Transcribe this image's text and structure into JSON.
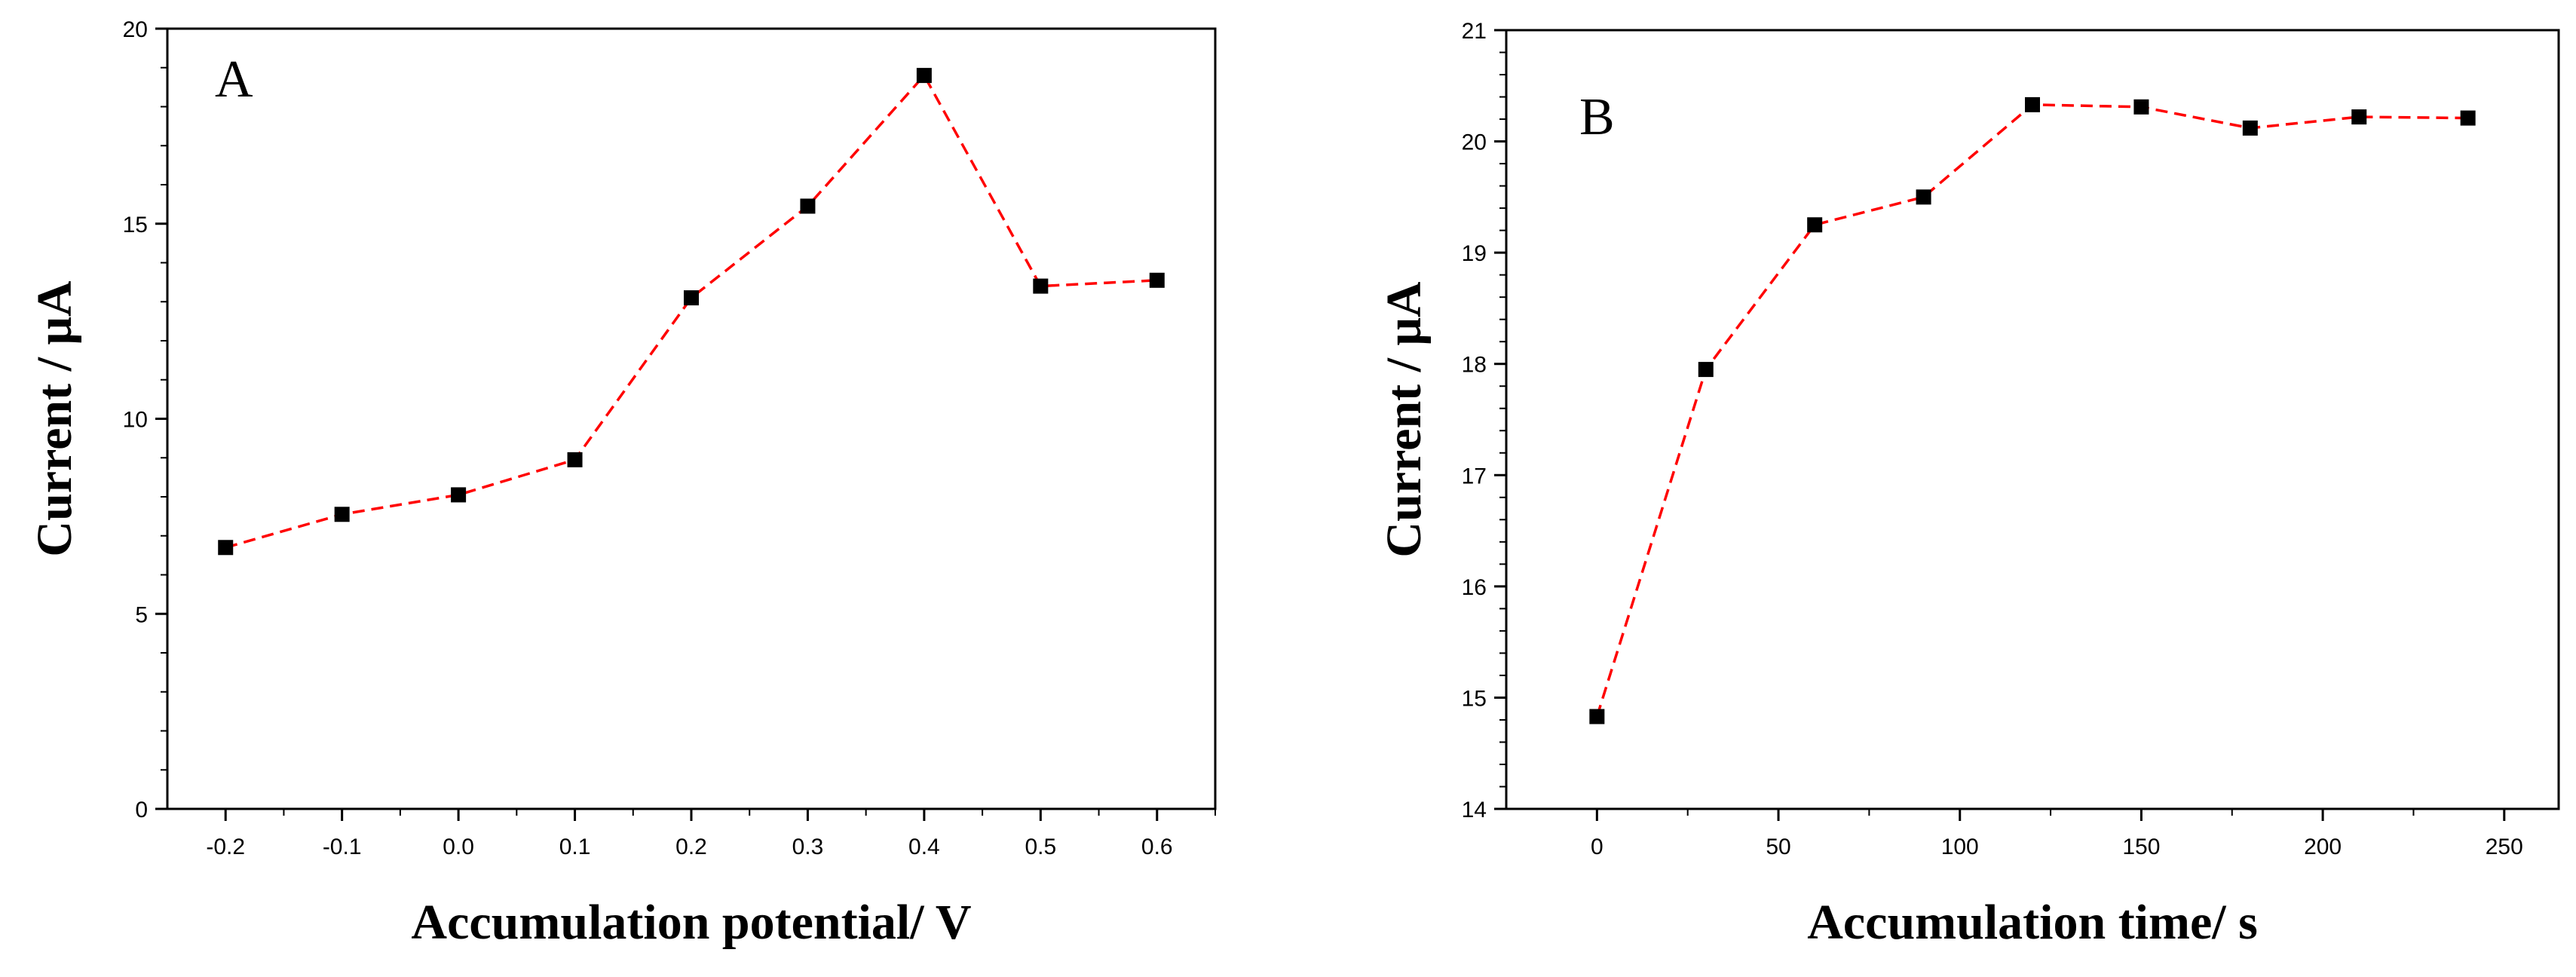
{
  "chart_data": [
    {
      "type": "line",
      "panel_label": "A",
      "xlabel": "Accumulation potential/ V",
      "ylabel": "Current / μA",
      "xlim": [
        -0.25,
        0.65
      ],
      "ylim": [
        0,
        20
      ],
      "xticks": [
        "-0.2",
        "-0.1",
        "0.0",
        "0.1",
        "0.2",
        "0.3",
        "0.4",
        "0.5",
        "0.6"
      ],
      "yticks": [
        "0",
        "5",
        "10",
        "15",
        "20"
      ],
      "series": [
        {
          "name": "Current",
          "x": [
            -0.2,
            -0.1,
            0.0,
            0.1,
            0.2,
            0.3,
            0.4,
            0.5,
            0.6
          ],
          "y": [
            6.7,
            7.55,
            8.05,
            8.95,
            13.1,
            15.45,
            18.8,
            13.4,
            13.55
          ],
          "line_color": "#ff0000",
          "marker_color": "#000000"
        }
      ]
    },
    {
      "type": "line",
      "panel_label": "B",
      "xlabel": "Accumulation time/ s",
      "ylabel": "Current / μA",
      "xlim": [
        -25,
        265
      ],
      "ylim": [
        14,
        21
      ],
      "xticks": [
        "0",
        "50",
        "100",
        "150",
        "200",
        "250"
      ],
      "yticks": [
        "14",
        "15",
        "16",
        "17",
        "18",
        "19",
        "20",
        "21"
      ],
      "series": [
        {
          "name": "Current",
          "x": [
            0,
            30,
            60,
            90,
            120,
            150,
            180,
            210,
            240
          ],
          "y": [
            14.83,
            17.95,
            19.25,
            19.5,
            20.33,
            20.31,
            20.12,
            20.22,
            20.21
          ],
          "line_color": "#ff0000",
          "marker_color": "#000000"
        }
      ]
    }
  ]
}
